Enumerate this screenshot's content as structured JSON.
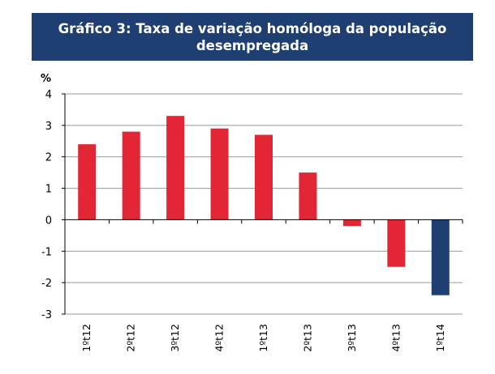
{
  "chart_data": {
    "type": "bar",
    "title": "Gráfico 3: Taxa de variação homóloga da população desempregada",
    "ylabel": "%",
    "xlabel": "",
    "categories": [
      "1ºt12",
      "2ºt12",
      "3ºt12",
      "4ºt12",
      "1ºt13",
      "2ºt13",
      "3ºt13",
      "4ºt13",
      "1ºt14"
    ],
    "values": [
      2.4,
      2.8,
      3.3,
      2.9,
      2.7,
      1.5,
      -0.2,
      -1.5,
      -2.4
    ],
    "ylim": [
      -3,
      4
    ],
    "yticks": [
      "4",
      "3",
      "2",
      "1",
      "0",
      "-1",
      "-2",
      "-3"
    ],
    "grid": true,
    "legend": "none",
    "colors": {
      "bar": "#e32636",
      "highlight_bar": "#1f3f73",
      "highlight_index": 8,
      "title_bg": "#1f3f73",
      "grid": "#999999",
      "axis": "#000000"
    }
  }
}
